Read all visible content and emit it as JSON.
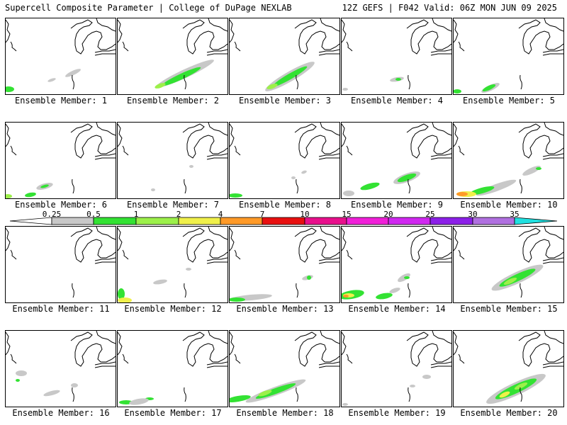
{
  "header": {
    "title_left": "Supercell Composite Parameter | College of DuPage NEXLAB",
    "title_right": "12Z GEFS | F042 Valid: 06Z MON JUN 09 2025"
  },
  "colorbar": {
    "labels": [
      "0.25",
      "0.5",
      "1",
      "2",
      "4",
      "7",
      "10",
      "15",
      "20",
      "25",
      "30",
      "35"
    ],
    "colors": [
      "#c8c8c8",
      "#33e233",
      "#9cf04a",
      "#f0f04a",
      "#ff9a28",
      "#e81010",
      "#e8108c",
      "#f020d8",
      "#d028f0",
      "#8c20e8",
      "#b070e0",
      "#20e0e0"
    ]
  },
  "panels": [
    {
      "label": "Ensemble Member: 1"
    },
    {
      "label": "Ensemble Member: 2"
    },
    {
      "label": "Ensemble Member: 3"
    },
    {
      "label": "Ensemble Member: 4"
    },
    {
      "label": "Ensemble Member: 5"
    },
    {
      "label": "Ensemble Member: 6"
    },
    {
      "label": "Ensemble Member: 7"
    },
    {
      "label": "Ensemble Member: 8"
    },
    {
      "label": "Ensemble Member: 9"
    },
    {
      "label": "Ensemble Member: 10"
    },
    {
      "label": "Ensemble Member: 11"
    },
    {
      "label": "Ensemble Member: 12"
    },
    {
      "label": "Ensemble Member: 13"
    },
    {
      "label": "Ensemble Member: 14"
    },
    {
      "label": "Ensemble Member: 15"
    },
    {
      "label": "Ensemble Member: 16"
    },
    {
      "label": "Ensemble Member: 17"
    },
    {
      "label": "Ensemble Member: 18"
    },
    {
      "label": "Ensemble Member: 19"
    },
    {
      "label": "Ensemble Member: 20"
    }
  ]
}
